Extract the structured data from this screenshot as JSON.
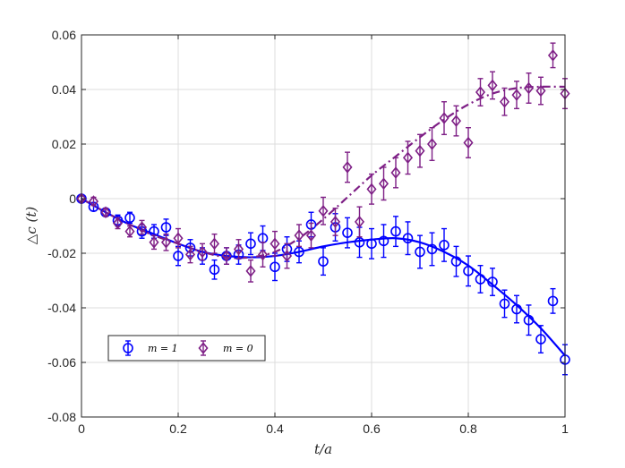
{
  "chart_data": {
    "type": "scatter",
    "title": "",
    "xlabel": "t/a",
    "ylabel": "△c (t)",
    "xlim": [
      0,
      1
    ],
    "ylim": [
      -0.08,
      0.06
    ],
    "xticks": [
      0,
      0.2,
      0.4,
      0.6,
      0.8,
      1
    ],
    "xtick_labels": [
      "0",
      "0.2",
      "0.4",
      "0.6",
      "0.8",
      "1"
    ],
    "yticks": [
      -0.08,
      -0.06,
      -0.04,
      -0.02,
      0,
      0.02,
      0.04,
      0.06
    ],
    "ytick_labels": [
      "-0.08",
      "-0.06",
      "-0.04",
      "-0.02",
      "0",
      "0.02",
      "0.04",
      "0.06"
    ],
    "grid": true,
    "legend_position": "lower-left",
    "series": [
      {
        "name": "m = 1",
        "color": "#0000ff",
        "marker": "circle",
        "fit_style": "solid",
        "x": [
          0.0,
          0.025,
          0.05,
          0.075,
          0.1,
          0.125,
          0.15,
          0.175,
          0.2,
          0.225,
          0.25,
          0.275,
          0.3,
          0.325,
          0.35,
          0.375,
          0.4,
          0.425,
          0.45,
          0.475,
          0.5,
          0.525,
          0.55,
          0.575,
          0.6,
          0.625,
          0.65,
          0.675,
          0.7,
          0.725,
          0.75,
          0.775,
          0.8,
          0.825,
          0.85,
          0.875,
          0.9,
          0.925,
          0.95,
          0.975,
          1.0
        ],
        "y": [
          0.0,
          -0.003,
          -0.005,
          -0.008,
          -0.007,
          -0.012,
          -0.012,
          -0.0105,
          -0.021,
          -0.018,
          -0.021,
          -0.026,
          -0.021,
          -0.0205,
          -0.0165,
          -0.0145,
          -0.025,
          -0.0185,
          -0.0195,
          -0.0095,
          -0.023,
          -0.0105,
          -0.0125,
          -0.016,
          -0.0165,
          -0.0155,
          -0.012,
          -0.0145,
          -0.0195,
          -0.0185,
          -0.017,
          -0.023,
          -0.0265,
          -0.0295,
          -0.0305,
          -0.0385,
          -0.0405,
          -0.0445,
          -0.0515,
          -0.0375,
          -0.059
        ],
        "err": [
          0.001,
          0.0015,
          0.0015,
          0.002,
          0.002,
          0.0025,
          0.0025,
          0.003,
          0.0035,
          0.003,
          0.003,
          0.0035,
          0.003,
          0.0035,
          0.004,
          0.0045,
          0.005,
          0.0045,
          0.004,
          0.0045,
          0.005,
          0.005,
          0.0055,
          0.0055,
          0.0055,
          0.006,
          0.0055,
          0.006,
          0.006,
          0.006,
          0.006,
          0.0055,
          0.0055,
          0.005,
          0.005,
          0.005,
          0.005,
          0.0055,
          0.005,
          0.0045,
          0.0055
        ],
        "fit": {
          "x": [
            0,
            0.05,
            0.1,
            0.15,
            0.2,
            0.25,
            0.3,
            0.35,
            0.4,
            0.45,
            0.5,
            0.55,
            0.6,
            0.65,
            0.7,
            0.75,
            0.8,
            0.85,
            0.9,
            0.95,
            1.0
          ],
          "y": [
            0.0,
            -0.005,
            -0.0095,
            -0.013,
            -0.0165,
            -0.0195,
            -0.021,
            -0.0215,
            -0.021,
            -0.0195,
            -0.0175,
            -0.016,
            -0.015,
            -0.0145,
            -0.016,
            -0.0195,
            -0.0245,
            -0.0315,
            -0.039,
            -0.0475,
            -0.0575
          ]
        }
      },
      {
        "name": "m = 0",
        "color": "#7e1f86",
        "marker": "diamond",
        "fit_style": "dash-dot",
        "x": [
          0.0,
          0.025,
          0.05,
          0.075,
          0.1,
          0.125,
          0.15,
          0.175,
          0.2,
          0.225,
          0.25,
          0.275,
          0.3,
          0.325,
          0.35,
          0.375,
          0.4,
          0.425,
          0.45,
          0.475,
          0.5,
          0.525,
          0.55,
          0.575,
          0.6,
          0.625,
          0.65,
          0.675,
          0.7,
          0.725,
          0.75,
          0.775,
          0.8,
          0.825,
          0.85,
          0.875,
          0.9,
          0.925,
          0.95,
          0.975,
          1.0
        ],
        "y": [
          0.0,
          -0.001,
          -0.005,
          -0.009,
          -0.012,
          -0.0105,
          -0.016,
          -0.016,
          -0.0145,
          -0.0205,
          -0.0195,
          -0.0165,
          -0.021,
          -0.0185,
          -0.0265,
          -0.0205,
          -0.0165,
          -0.021,
          -0.0135,
          -0.0135,
          -0.0045,
          -0.0085,
          0.0115,
          -0.0085,
          0.0035,
          0.0055,
          0.0095,
          0.015,
          0.0175,
          0.02,
          0.0295,
          0.0285,
          0.0205,
          0.039,
          0.0415,
          0.0355,
          0.038,
          0.0405,
          0.0395,
          0.0525,
          0.0385
        ],
        "err": [
          0.001,
          0.0015,
          0.0015,
          0.002,
          0.002,
          0.0025,
          0.0025,
          0.003,
          0.0035,
          0.003,
          0.003,
          0.0035,
          0.003,
          0.0035,
          0.004,
          0.0045,
          0.0045,
          0.0045,
          0.004,
          0.0045,
          0.005,
          0.005,
          0.0055,
          0.0055,
          0.0055,
          0.006,
          0.0055,
          0.006,
          0.006,
          0.006,
          0.006,
          0.0055,
          0.0055,
          0.005,
          0.005,
          0.005,
          0.005,
          0.0055,
          0.005,
          0.0045,
          0.0055
        ],
        "fit": {
          "x": [
            0,
            0.05,
            0.1,
            0.15,
            0.2,
            0.25,
            0.3,
            0.35,
            0.4,
            0.45,
            0.5,
            0.55,
            0.6,
            0.65,
            0.7,
            0.75,
            0.8,
            0.85,
            0.9,
            0.95,
            1.0
          ],
          "y": [
            0.0,
            -0.005,
            -0.0095,
            -0.0135,
            -0.0165,
            -0.0195,
            -0.0215,
            -0.0215,
            -0.0195,
            -0.0145,
            -0.0075,
            0.0005,
            0.0085,
            0.0155,
            0.0225,
            0.029,
            0.0345,
            0.0385,
            0.0405,
            0.041,
            0.041
          ]
        }
      }
    ]
  }
}
